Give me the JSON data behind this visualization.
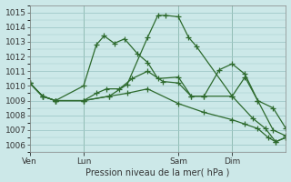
{
  "bg_color": "#cce8e8",
  "grid_color": "#a0c8c8",
  "line_color": "#2d6a2d",
  "title": "Pression niveau de la mer( hPa )",
  "ylim": [
    1005.5,
    1015.5
  ],
  "yticks": [
    1006,
    1007,
    1008,
    1009,
    1010,
    1011,
    1012,
    1013,
    1014,
    1015
  ],
  "xtick_labels": [
    "Ven",
    "Lun",
    "Sam",
    "Dim"
  ],
  "vline_positions": [
    0.0,
    0.21,
    0.58,
    0.79
  ],
  "series": [
    {
      "x": [
        0.0,
        0.05,
        0.1,
        0.21,
        0.26,
        0.29,
        0.33,
        0.37,
        0.42,
        0.46,
        0.5,
        0.58,
        0.63,
        0.68,
        0.74,
        0.79,
        0.84,
        0.89,
        0.95,
        1.0
      ],
      "y": [
        1010.2,
        1009.3,
        1009.0,
        1010.0,
        1012.8,
        1013.4,
        1012.9,
        1013.2,
        1012.2,
        1011.6,
        1010.5,
        1010.6,
        1009.3,
        1009.3,
        1011.1,
        1011.5,
        1010.8,
        1009.0,
        1008.5,
        1007.1
      ]
    },
    {
      "x": [
        0.0,
        0.05,
        0.1,
        0.21,
        0.26,
        0.3,
        0.35,
        0.4,
        0.46,
        0.52,
        0.58,
        0.63,
        0.68,
        0.79,
        0.84,
        0.89,
        0.95,
        1.0
      ],
      "y": [
        1010.2,
        1009.3,
        1009.0,
        1009.0,
        1009.5,
        1009.8,
        1009.8,
        1010.5,
        1011.0,
        1010.3,
        1010.2,
        1009.3,
        1009.3,
        1009.3,
        1010.6,
        1009.0,
        1007.0,
        1006.6
      ]
    },
    {
      "x": [
        0.0,
        0.05,
        0.1,
        0.21,
        0.31,
        0.38,
        0.46,
        0.5,
        0.53,
        0.58,
        0.62,
        0.65,
        0.79,
        0.87,
        0.92,
        0.96,
        1.0
      ],
      "y": [
        1010.2,
        1009.3,
        1009.0,
        1009.0,
        1009.3,
        1010.1,
        1013.3,
        1014.8,
        1014.8,
        1014.7,
        1013.3,
        1012.7,
        1009.3,
        1007.8,
        1007.1,
        1006.2,
        1006.5
      ]
    },
    {
      "x": [
        0.0,
        0.05,
        0.1,
        0.21,
        0.31,
        0.38,
        0.46,
        0.58,
        0.68,
        0.79,
        0.84,
        0.89,
        0.93,
        0.96,
        1.0
      ],
      "y": [
        1010.2,
        1009.3,
        1009.0,
        1009.0,
        1009.3,
        1009.5,
        1009.8,
        1008.8,
        1008.2,
        1007.7,
        1007.4,
        1007.1,
        1006.5,
        1006.2,
        1006.5
      ]
    }
  ]
}
